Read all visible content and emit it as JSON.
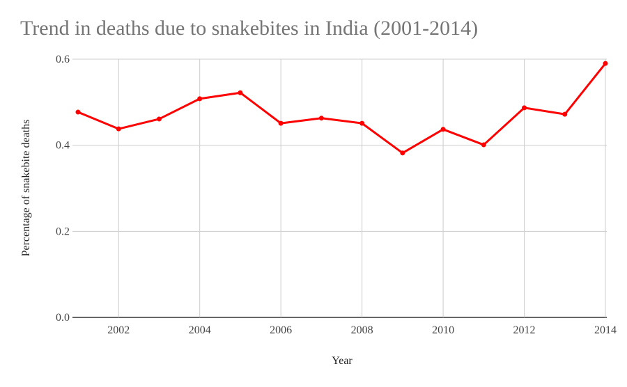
{
  "chart_data": {
    "type": "line",
    "title": "Trend in deaths due to snakebites in India (2001-2014)",
    "xlabel": "Year",
    "ylabel": "Percentage of snakebite deaths",
    "x": [
      2001,
      2002,
      2003,
      2004,
      2005,
      2006,
      2007,
      2008,
      2009,
      2010,
      2011,
      2012,
      2013,
      2014
    ],
    "series": [
      {
        "name": "Percentage of snakebite deaths",
        "color": "#ff0000",
        "values": [
          0.477,
          0.438,
          0.461,
          0.508,
          0.522,
          0.451,
          0.463,
          0.451,
          0.382,
          0.437,
          0.401,
          0.487,
          0.472,
          0.59
        ]
      }
    ],
    "xlim": [
      2001,
      2014
    ],
    "ylim": [
      0,
      0.6
    ],
    "x_ticks": [
      "2002",
      "2004",
      "2006",
      "2008",
      "2010",
      "2012",
      "2014"
    ],
    "y_ticks": [
      "0.0",
      "0.2",
      "0.4",
      "0.6"
    ],
    "grid": true,
    "legend": "none"
  },
  "colors": {
    "line": "#ff0000",
    "grid": "#cccccc",
    "baseline": "#333333",
    "title": "#757575"
  }
}
